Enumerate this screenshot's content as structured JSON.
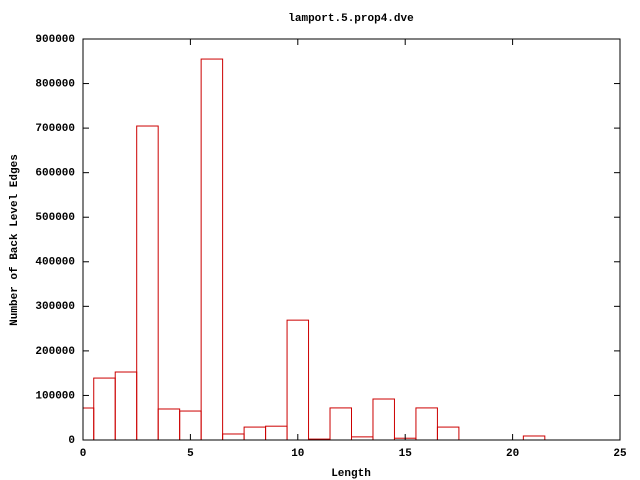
{
  "chart_data": {
    "type": "histogram",
    "title": "lamport.5.prop4.dve",
    "xlabel": "Length",
    "ylabel": "Number of Back Level Edges",
    "bins": [
      -0.5,
      0.5,
      1.5,
      2.5,
      3.5,
      4.5,
      5.5,
      6.5,
      7.5,
      8.5,
      9.5,
      10.5,
      11.5,
      12.5,
      13.5,
      14.5,
      15.5,
      16.5,
      17.5,
      18.5,
      19.5,
      20.5,
      21.5
    ],
    "values": [
      71800,
      139000,
      152600,
      704700,
      69600,
      65000,
      855000,
      13500,
      29000,
      31000,
      269000,
      2000,
      72000,
      7000,
      92000,
      4000,
      72000,
      29000,
      0,
      0,
      0,
      9000
    ],
    "color": "#cc0000",
    "xlim": [
      0,
      25
    ],
    "xticks": [
      0,
      5,
      10,
      15,
      20,
      25
    ],
    "ylim": [
      0,
      900000
    ],
    "yticks": [
      0,
      100000,
      200000,
      300000,
      400000,
      500000,
      600000,
      700000,
      800000,
      900000
    ]
  }
}
